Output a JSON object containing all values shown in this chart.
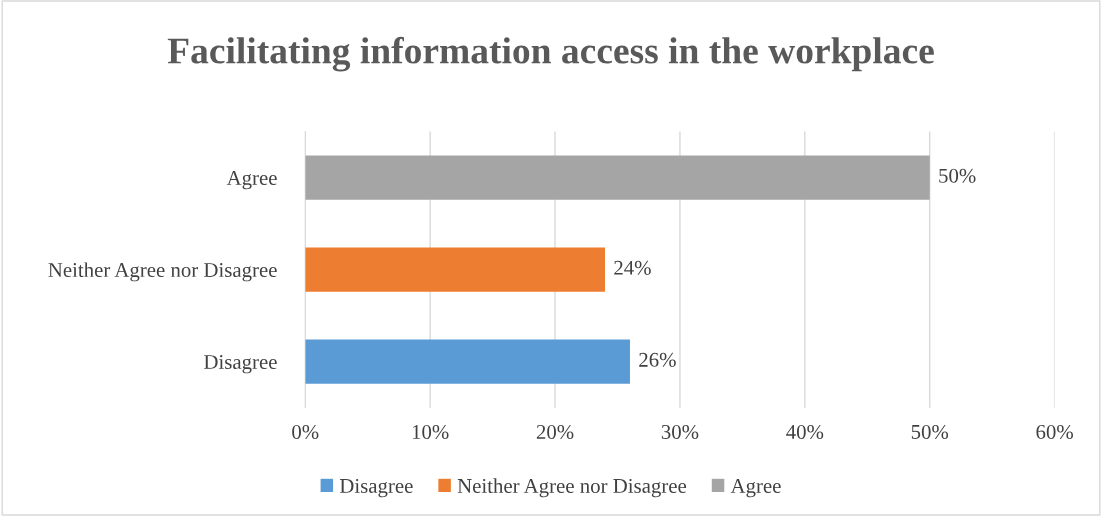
{
  "chart_data": {
    "type": "bar",
    "orientation": "horizontal",
    "stacked": true,
    "title": "Facilitating information access in the workplace",
    "categories": [
      "Agree",
      "Neither Agree nor Disagree",
      "Disagree"
    ],
    "series": [
      {
        "name": "Disagree",
        "color": "#5b9bd5",
        "values": [
          null,
          null,
          26
        ],
        "value_labels": [
          null,
          null,
          "26%"
        ]
      },
      {
        "name": "Neither Agree nor Disagree",
        "color": "#ed7d31",
        "values": [
          null,
          24,
          null
        ],
        "value_labels": [
          null,
          "24%",
          null
        ]
      },
      {
        "name": "Agree",
        "color": "#a5a5a5",
        "values": [
          50,
          null,
          null
        ],
        "value_labels": [
          "50%",
          null,
          null
        ]
      }
    ],
    "xlim": [
      0,
      60
    ],
    "xticks": [
      {
        "value": 0,
        "label": "0%"
      },
      {
        "value": 10,
        "label": "10%"
      },
      {
        "value": 20,
        "label": "20%"
      },
      {
        "value": 30,
        "label": "30%"
      },
      {
        "value": 40,
        "label": "40%"
      },
      {
        "value": 50,
        "label": "50%"
      },
      {
        "value": 60,
        "label": "60%"
      }
    ],
    "grid": "x",
    "legend": "bottom"
  }
}
